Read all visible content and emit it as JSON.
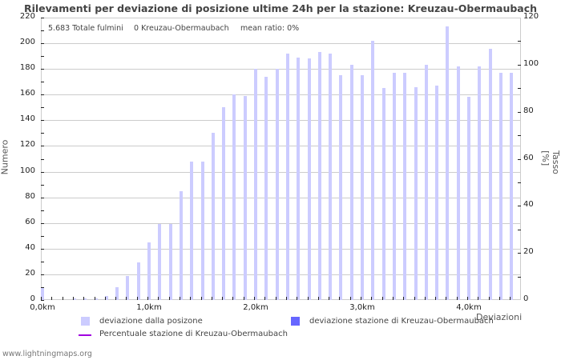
{
  "title": "Rilevamenti per deviazione di posizione ultime 24h per la stazione: Kreuzau-Obermaubach",
  "info": {
    "total": "5.683 Totale fulmini",
    "station": "0 Kreuzau-Obermaubach",
    "mean_ratio": "mean ratio: 0%"
  },
  "axes": {
    "left_label": "Numero",
    "right_label": "Tasso [%]",
    "x_label": "Deviazioni",
    "left_ticks": [
      "0",
      "20",
      "40",
      "60",
      "80",
      "100",
      "120",
      "140",
      "160",
      "180",
      "200",
      "220"
    ],
    "right_ticks": [
      "0",
      "20",
      "40",
      "60",
      "80",
      "100",
      "120"
    ],
    "x_ticks": [
      "0,0km",
      "1,0km",
      "2,0km",
      "3,0km",
      "4,0km"
    ]
  },
  "legend": {
    "item1": "deviazione dalla posizone",
    "item2": "deviazione stazione di Kreuzau-Obermaubach",
    "item3": "Percentuale stazione di Kreuzau-Obermaubach"
  },
  "colors": {
    "bar": "#ccccff",
    "station_bar": "#6666ff",
    "percent_line": "#a000e0",
    "grid": "#cccccc"
  },
  "footer": "www.lightningmaps.org",
  "chart_data": {
    "type": "bar",
    "title": "Rilevamenti per deviazione di posizione ultime 24h per la stazione: Kreuzau-Obermaubach",
    "xlabel": "Deviazioni",
    "ylabel": "Numero",
    "y2label": "Tasso [%]",
    "ylim": [
      0,
      220
    ],
    "y2lim": [
      0,
      120
    ],
    "grid": true,
    "legend_position": "bottom",
    "categories": [
      "0.0",
      "0.1",
      "0.2",
      "0.3",
      "0.4",
      "0.5",
      "0.6",
      "0.7",
      "0.8",
      "0.9",
      "1.0",
      "1.1",
      "1.2",
      "1.3",
      "1.4",
      "1.5",
      "1.6",
      "1.7",
      "1.8",
      "1.9",
      "2.0",
      "2.1",
      "2.2",
      "2.3",
      "2.4",
      "2.5",
      "2.6",
      "2.7",
      "2.8",
      "2.9",
      "3.0",
      "3.1",
      "3.2",
      "3.3",
      "3.4",
      "3.5",
      "3.6",
      "3.7",
      "3.8",
      "3.9",
      "4.0",
      "4.1",
      "4.2",
      "4.3",
      "4.4"
    ],
    "series": [
      {
        "name": "deviazione dalla posizone",
        "values": [
          10,
          0,
          0,
          1,
          1,
          1,
          3,
          10,
          19,
          29,
          45,
          59,
          59,
          85,
          108,
          108,
          130,
          150,
          160,
          159,
          180,
          174,
          180,
          192,
          189,
          188,
          193,
          192,
          175,
          183,
          175,
          202,
          165,
          177,
          177,
          166,
          183,
          167,
          213,
          182,
          158,
          182,
          196,
          177,
          177
        ]
      },
      {
        "name": "deviazione stazione di Kreuzau-Obermaubach",
        "values": [
          0,
          0,
          0,
          0,
          0,
          0,
          0,
          0,
          0,
          0,
          0,
          0,
          0,
          0,
          0,
          0,
          0,
          0,
          0,
          0,
          0,
          0,
          0,
          0,
          0,
          0,
          0,
          0,
          0,
          0,
          0,
          0,
          0,
          0,
          0,
          0,
          0,
          0,
          0,
          0,
          0,
          0,
          0,
          0,
          0
        ]
      },
      {
        "name": "Percentuale stazione di Kreuzau-Obermaubach",
        "values": [
          0,
          0,
          0,
          0,
          0,
          0,
          0,
          0,
          0,
          0,
          0,
          0,
          0,
          0,
          0,
          0,
          0,
          0,
          0,
          0,
          0,
          0,
          0,
          0,
          0,
          0,
          0,
          0,
          0,
          0,
          0,
          0,
          0,
          0,
          0,
          0,
          0,
          0,
          0,
          0,
          0,
          0,
          0,
          0,
          0
        ]
      }
    ]
  }
}
